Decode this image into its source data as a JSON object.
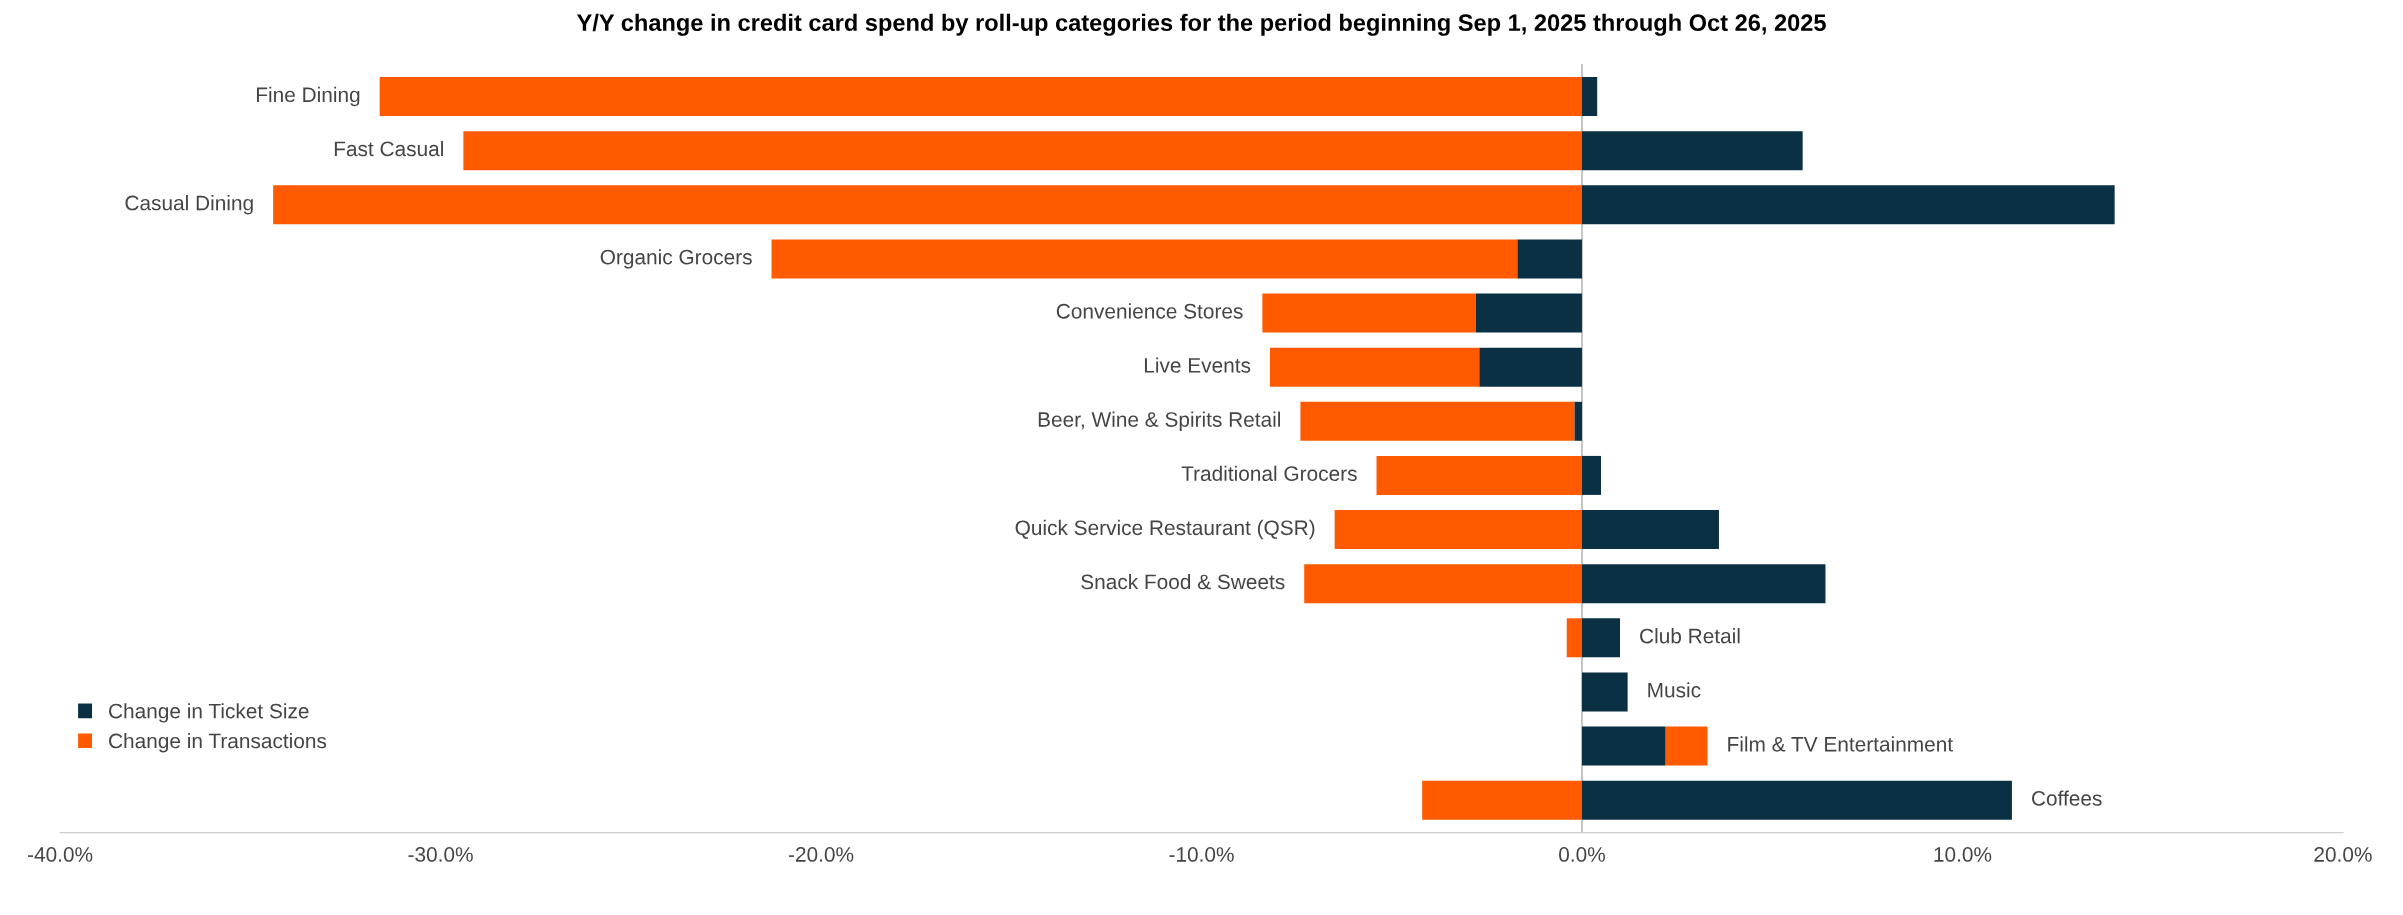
{
  "chart_data": {
    "type": "bar",
    "orientation": "horizontal",
    "stacked": true,
    "title": "Y/Y change in credit card spend by roll-up categories for the period beginning Sep 1, 2025 through Oct 26, 2025",
    "categories": [
      "Fine Dining",
      "Fast Casual",
      "Casual Dining",
      "Organic Grocers",
      "Convenience Stores",
      "Live Events",
      "Beer, Wine & Spirits Retail",
      "Traditional Grocers",
      "Quick Service Restaurant (QSR)",
      "Snack Food & Sweets",
      "Club Retail",
      "Music",
      "Film & TV Entertainment",
      "Coffees"
    ],
    "series": [
      {
        "name": "Change in Ticket Size",
        "color": "#0a3044",
        "values": [
          0.4,
          5.8,
          14.0,
          -1.7,
          -2.8,
          -2.7,
          -0.2,
          0.5,
          3.6,
          6.4,
          1.0,
          1.2,
          2.2,
          11.3
        ]
      },
      {
        "name": "Change in Transactions",
        "color": "#ff5a00",
        "values": [
          -31.6,
          -29.4,
          -34.4,
          -19.6,
          -5.6,
          -5.5,
          -7.2,
          -5.4,
          -6.5,
          -7.3,
          -0.4,
          0,
          1.1,
          -4.2
        ]
      }
    ],
    "xlim": [
      -40,
      20
    ],
    "xticks": [
      {
        "value": -40,
        "label": "-40.0%"
      },
      {
        "value": -30,
        "label": "-30.0%"
      },
      {
        "value": -20,
        "label": "-20.0%"
      },
      {
        "value": -10,
        "label": "-10.0%"
      },
      {
        "value": 0,
        "label": "0.0%"
      },
      {
        "value": 10,
        "label": "10.0%"
      },
      {
        "value": 20,
        "label": "20.0%"
      }
    ],
    "ref_lines": [
      {
        "axis": "x",
        "value": 0,
        "color": "#bbbbbb"
      }
    ],
    "grid": false,
    "legend": "bottom left"
  }
}
